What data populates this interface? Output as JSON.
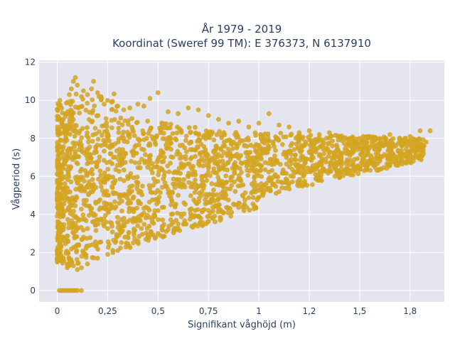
{
  "chart_data": {
    "type": "scatter",
    "title": "År 1979 - 2019",
    "subtitle": "Koordinat (Sweref 99 TM): E 376373, N 6137910",
    "xlabel": "Signifikant våghöjd (m)",
    "ylabel": "Vågperiod (s)",
    "xlim": [
      -0.09,
      1.92
    ],
    "ylim": [
      -0.6,
      12.1
    ],
    "x_ticks": [
      0,
      0.25,
      0.5,
      0.75,
      1,
      1.25,
      1.5,
      1.75
    ],
    "x_tick_labels": [
      "0",
      "0,25",
      "0,5",
      "0,75",
      "1",
      "1,2",
      "1,5",
      "1,8"
    ],
    "y_ticks": [
      0,
      2,
      4,
      6,
      8,
      10,
      12
    ],
    "y_tick_labels": [
      "0",
      "2",
      "4",
      "6",
      "8",
      "10",
      "12"
    ],
    "grid": true,
    "marker_color": "#d4a420",
    "plot_bg": "#e5e5f0",
    "series": [
      {
        "values_note": "dense point cloud; representative sample of the visible distribution",
        "points": [
          [
            0.01,
            0
          ],
          [
            0.02,
            0
          ],
          [
            0.03,
            0
          ],
          [
            0.04,
            0
          ],
          [
            0.05,
            0
          ],
          [
            0.06,
            0
          ],
          [
            0.07,
            0
          ],
          [
            0.08,
            0
          ],
          [
            0.09,
            0
          ],
          [
            0.1,
            0
          ],
          [
            0.12,
            0
          ],
          [
            0.0,
            1.5
          ],
          [
            0.01,
            1.9
          ],
          [
            0.02,
            2.6
          ],
          [
            0.03,
            3.2
          ],
          [
            0.02,
            4.1
          ],
          [
            0.03,
            5.0
          ],
          [
            0.02,
            6.2
          ],
          [
            0.03,
            7.0
          ],
          [
            0.02,
            7.9
          ],
          [
            0.03,
            8.6
          ],
          [
            0.04,
            9.3
          ],
          [
            0.05,
            9.9
          ],
          [
            0.06,
            10.3
          ],
          [
            0.07,
            10.6
          ],
          [
            0.08,
            11.0
          ],
          [
            0.09,
            11.2
          ],
          [
            0.1,
            10.8
          ],
          [
            0.12,
            10.2
          ],
          [
            0.13,
            10.5
          ],
          [
            0.15,
            10.3
          ],
          [
            0.17,
            10.6
          ],
          [
            0.18,
            11.0
          ],
          [
            0.2,
            10.4
          ],
          [
            0.22,
            10.1
          ],
          [
            0.25,
            10.0
          ],
          [
            0.27,
            9.9
          ],
          [
            0.3,
            9.7
          ],
          [
            0.33,
            9.5
          ],
          [
            0.36,
            9.6
          ],
          [
            0.4,
            9.8
          ],
          [
            0.43,
            9.7
          ],
          [
            0.46,
            10.1
          ],
          [
            0.5,
            10.4
          ],
          [
            0.55,
            9.4
          ],
          [
            0.6,
            9.3
          ],
          [
            0.65,
            9.6
          ],
          [
            0.7,
            9.5
          ],
          [
            0.75,
            9.2
          ],
          [
            0.8,
            9.0
          ],
          [
            0.85,
            8.8
          ],
          [
            0.9,
            8.9
          ],
          [
            0.95,
            8.6
          ],
          [
            1.0,
            8.8
          ],
          [
            1.05,
            9.3
          ],
          [
            1.1,
            8.7
          ],
          [
            1.15,
            8.6
          ],
          [
            1.2,
            8.3
          ],
          [
            1.25,
            8.4
          ],
          [
            1.3,
            8.2
          ],
          [
            1.35,
            8.3
          ],
          [
            1.4,
            8.1
          ],
          [
            1.45,
            8.0
          ],
          [
            1.5,
            8.0
          ],
          [
            1.55,
            8.1
          ],
          [
            1.6,
            8.0
          ],
          [
            1.65,
            8.2
          ],
          [
            1.7,
            8.0
          ],
          [
            1.75,
            8.1
          ],
          [
            1.8,
            8.4
          ],
          [
            1.85,
            8.4
          ],
          [
            1.83,
            7.8
          ],
          [
            1.8,
            7.6
          ],
          [
            1.75,
            7.3
          ],
          [
            1.7,
            7.1
          ],
          [
            1.65,
            6.9
          ],
          [
            1.6,
            6.8
          ],
          [
            1.5,
            6.4
          ],
          [
            1.4,
            6.1
          ],
          [
            1.3,
            5.8
          ],
          [
            1.2,
            5.5
          ],
          [
            1.1,
            5.2
          ],
          [
            1.0,
            4.9
          ],
          [
            0.9,
            4.6
          ],
          [
            0.8,
            4.3
          ],
          [
            0.7,
            3.9
          ],
          [
            0.6,
            3.5
          ],
          [
            0.5,
            3.0
          ],
          [
            0.4,
            2.6
          ],
          [
            0.3,
            2.1
          ],
          [
            0.2,
            1.7
          ],
          [
            0.15,
            1.4
          ],
          [
            0.1,
            1.1
          ],
          [
            0.05,
            1.2
          ],
          [
            0.08,
            1.3
          ],
          [
            0.12,
            1.2
          ],
          [
            0.25,
            1.9
          ],
          [
            0.35,
            2.4
          ],
          [
            0.45,
            2.8
          ],
          [
            0.55,
            3.2
          ]
        ]
      }
    ]
  }
}
